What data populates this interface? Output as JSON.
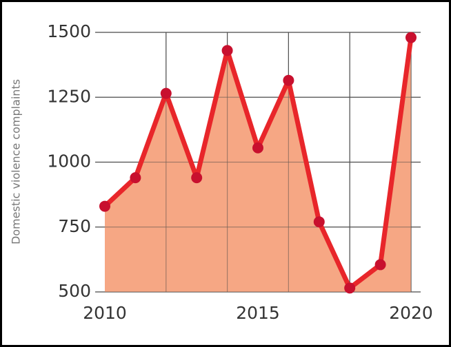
{
  "chart_data": {
    "type": "area-line",
    "y_label": "Domestic violence complaints",
    "x": [
      2010,
      2011,
      2012,
      2013,
      2014,
      2015,
      2016,
      2017,
      2018,
      2019,
      2020
    ],
    "series": [
      {
        "name": "Domestic violence complaints",
        "color": "#e8262a",
        "values": [
          830,
          940,
          1265,
          940,
          1430,
          1055,
          1315,
          770,
          515,
          605,
          1480
        ]
      }
    ],
    "fill_color": "#f5a07a",
    "marker_color": "#c8102e",
    "xlim": [
      2010,
      2020
    ],
    "xticks": [
      2010,
      2015,
      2020
    ],
    "xgrid": [
      2012,
      2014,
      2016,
      2018,
      2020
    ],
    "ylim": [
      500,
      1500
    ],
    "yticks": [
      500,
      750,
      1000,
      1250,
      1500
    ],
    "grid": true
  }
}
